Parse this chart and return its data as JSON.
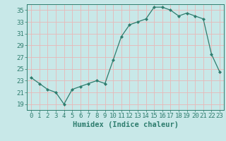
{
  "x": [
    0,
    1,
    2,
    3,
    4,
    5,
    6,
    7,
    8,
    9,
    10,
    11,
    12,
    13,
    14,
    15,
    16,
    17,
    18,
    19,
    20,
    21,
    22,
    23
  ],
  "y": [
    23.5,
    22.5,
    21.5,
    21.0,
    19.0,
    21.5,
    22.0,
    22.5,
    23.0,
    22.5,
    26.5,
    30.5,
    32.5,
    33.0,
    33.5,
    35.5,
    35.5,
    35.0,
    34.0,
    34.5,
    34.0,
    33.5,
    27.5,
    24.5
  ],
  "xlabel": "Humidex (Indice chaleur)",
  "ylim": [
    18,
    36
  ],
  "xlim": [
    -0.5,
    23.5
  ],
  "yticks": [
    19,
    21,
    23,
    25,
    27,
    29,
    31,
    33,
    35
  ],
  "xticks": [
    0,
    1,
    2,
    3,
    4,
    5,
    6,
    7,
    8,
    9,
    10,
    11,
    12,
    13,
    14,
    15,
    16,
    17,
    18,
    19,
    20,
    21,
    22,
    23
  ],
  "line_color": "#2e7d6e",
  "marker": "D",
  "marker_size": 2.0,
  "bg_color": "#c8e8e8",
  "grid_color": "#e8b8b8",
  "axis_color": "#2e7d6e",
  "label_color": "#2e7d6e",
  "font_size": 6.5,
  "xlabel_size": 7.5
}
